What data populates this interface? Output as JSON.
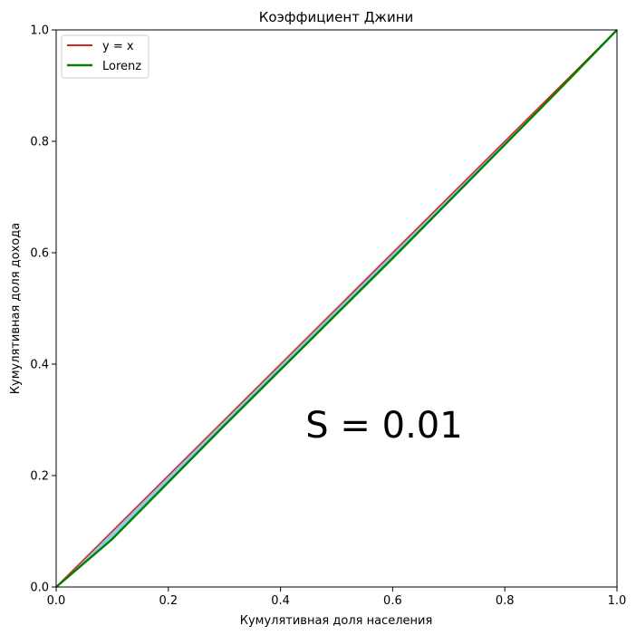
{
  "chart_data": {
    "type": "line",
    "title": "Коэффициент Джини",
    "xlabel": "Кумулятивная доля населения",
    "ylabel": "Кумулятивная доля дохода",
    "xlim": [
      0,
      1
    ],
    "ylim": [
      0,
      1
    ],
    "xticks": [
      "0.0",
      "0.2",
      "0.4",
      "0.6",
      "0.8",
      "1.0"
    ],
    "yticks": [
      "0.0",
      "0.2",
      "0.4",
      "0.6",
      "0.8",
      "1.0"
    ],
    "grid": false,
    "legend_position": "top-left",
    "annotation": "S = 0.01",
    "series": [
      {
        "name": "y = x",
        "color": "#d62728",
        "x": [
          0.0,
          1.0
        ],
        "y": [
          0.0,
          1.0
        ]
      },
      {
        "name": "Lorenz",
        "color": "#008000",
        "x": [
          0.0,
          0.1,
          0.2,
          0.3,
          0.4,
          0.5,
          0.6,
          0.7,
          0.8,
          0.9,
          1.0
        ],
        "y": [
          0.0,
          0.086,
          0.188,
          0.29,
          0.39,
          0.49,
          0.59,
          0.692,
          0.794,
          0.896,
          1.0
        ]
      }
    ],
    "fill_color": "#87ceeb"
  }
}
